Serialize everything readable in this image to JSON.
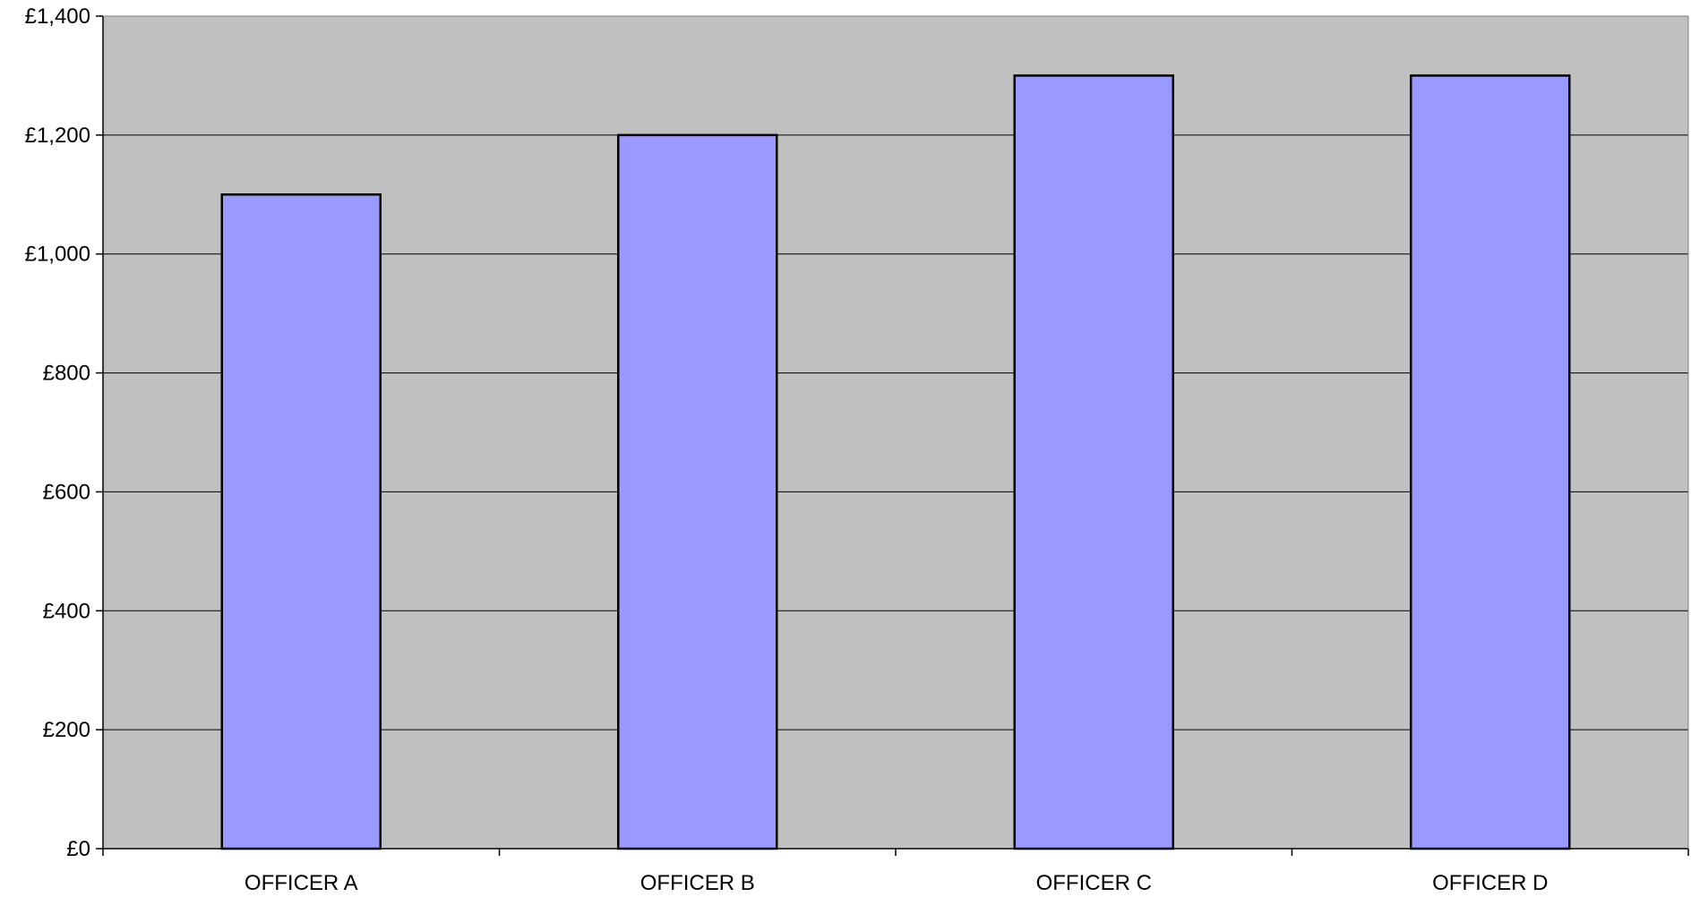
{
  "chart_data": {
    "type": "bar",
    "title": "",
    "xlabel": "",
    "ylabel": "",
    "categories": [
      "OFFICER A",
      "OFFICER B",
      "OFFICER C",
      "OFFICER D"
    ],
    "values": [
      1100,
      1200,
      1300,
      1300
    ],
    "ylim": [
      0,
      1400
    ],
    "y_ticks": [
      0,
      200,
      400,
      600,
      800,
      1000,
      1200,
      1400
    ],
    "y_tick_labels": [
      "£0",
      "£200",
      "£400",
      "£600",
      "£800",
      "£1,000",
      "£1,200",
      "£1,400"
    ],
    "grid": true,
    "legend": "none",
    "colors": {
      "plot_background": "#c0c0c0",
      "bar_fill": "#9999ff",
      "bar_stroke": "#000000",
      "gridline": "#000000",
      "axis": "#000000"
    }
  }
}
